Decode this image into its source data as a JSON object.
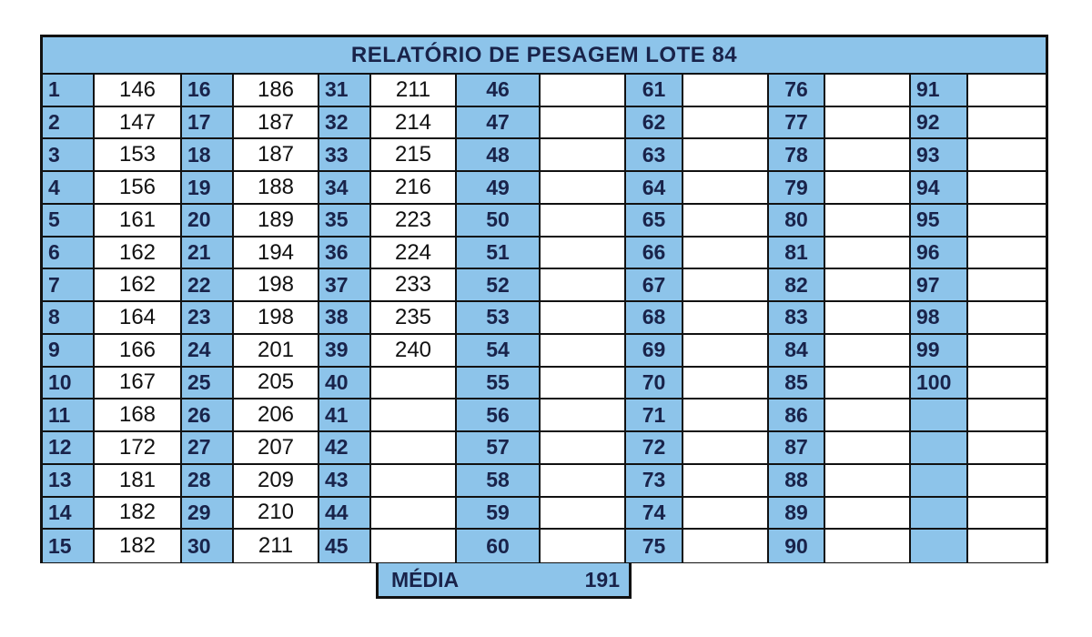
{
  "title": "RELATÓRIO DE PESAGEM LOTE  84",
  "rows": 15,
  "groups": [
    {
      "start": 1,
      "values": [
        "146",
        "147",
        "153",
        "156",
        "161",
        "162",
        "162",
        "164",
        "166",
        "167",
        "168",
        "172",
        "181",
        "182",
        "182"
      ]
    },
    {
      "start": 16,
      "values": [
        "186",
        "187",
        "187",
        "188",
        "189",
        "194",
        "198",
        "198",
        "201",
        "205",
        "206",
        "207",
        "209",
        "210",
        "211"
      ]
    },
    {
      "start": 31,
      "values": [
        "211",
        "214",
        "215",
        "216",
        "223",
        "224",
        "233",
        "235",
        "240",
        "",
        "",
        "",
        "",
        "",
        ""
      ]
    },
    {
      "start": 46,
      "values": [
        "",
        "",
        "",
        "",
        "",
        "",
        "",
        "",
        "",
        "",
        "",
        "",
        "",
        "",
        ""
      ]
    },
    {
      "start": 61,
      "values": [
        "",
        "",
        "",
        "",
        "",
        "",
        "",
        "",
        "",
        "",
        "",
        "",
        "",
        "",
        ""
      ]
    },
    {
      "start": 76,
      "values": [
        "",
        "",
        "",
        "",
        "",
        "",
        "",
        "",
        "",
        "",
        "",
        "",
        "",
        "",
        ""
      ]
    },
    {
      "start": 91,
      "values": [
        "",
        "",
        "",
        "",
        "",
        "",
        "",
        "",
        "",
        "",
        "",
        "",
        "",
        "",
        ""
      ],
      "max_index": 100
    }
  ],
  "summary": {
    "label": "MÉDIA",
    "value": "191"
  }
}
